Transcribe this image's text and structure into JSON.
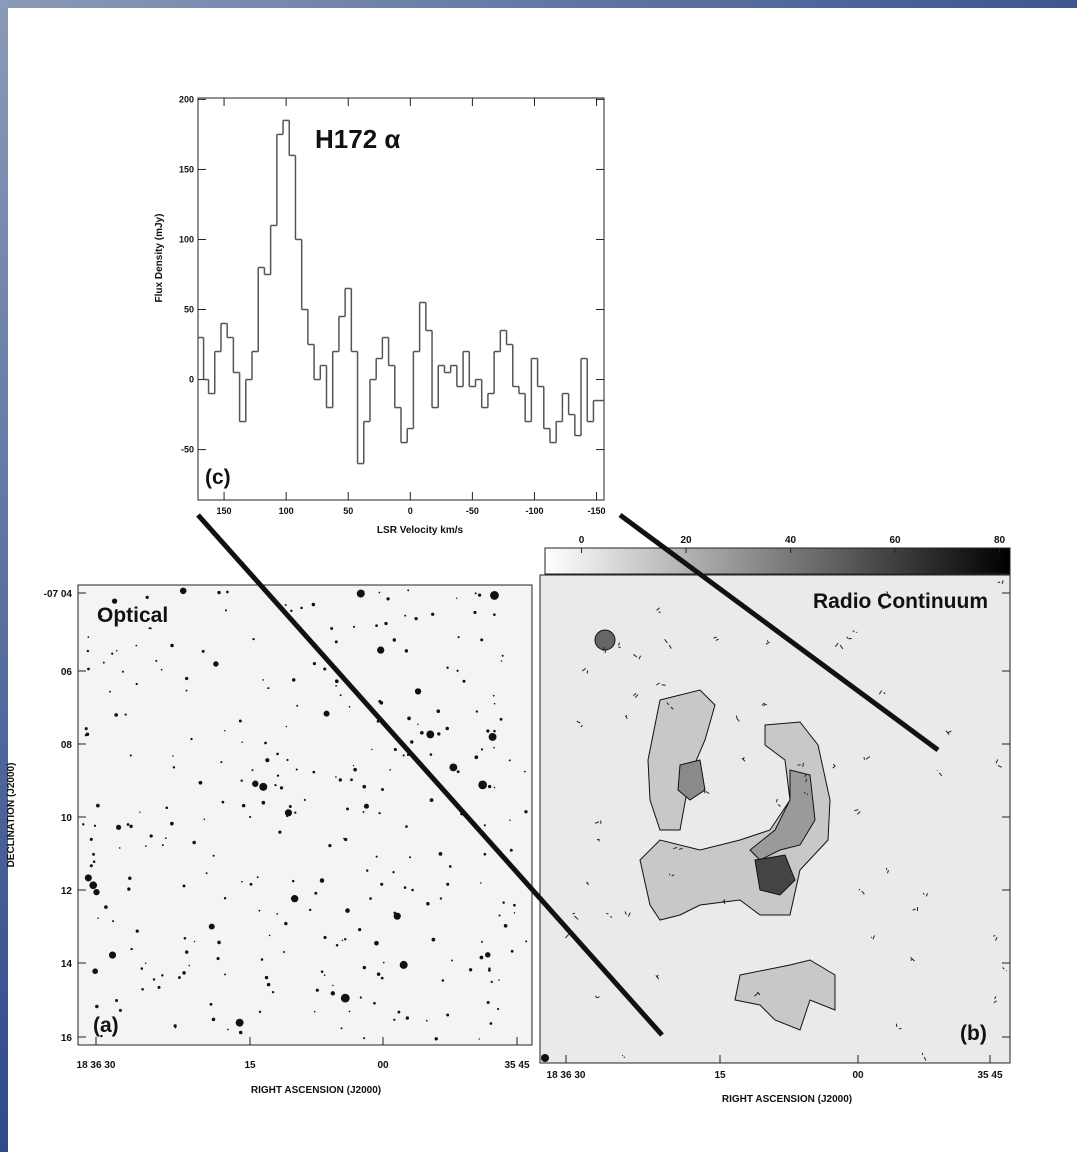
{
  "chart_data": {
    "type": "step",
    "title": "H172 α",
    "panel_label": "(c)",
    "x_label": "LSR Velocity km/s",
    "y_label": "Flux Density (mJy)",
    "x": [
      168,
      165,
      160,
      155,
      150,
      145,
      140,
      135,
      130,
      125,
      120,
      115,
      110,
      105,
      100,
      95,
      90,
      85,
      80,
      75,
      70,
      65,
      60,
      55,
      50,
      45,
      40,
      35,
      30,
      25,
      20,
      15,
      10,
      5,
      0,
      -5,
      -10,
      -15,
      -20,
      -25,
      -30,
      -35,
      -40,
      -45,
      -50,
      -55,
      -60,
      -65,
      -70,
      -75,
      -80,
      -85,
      -90,
      -95,
      -100,
      -105,
      -110,
      -115,
      -120,
      -125,
      -130,
      -135,
      -140,
      -145,
      -150
    ],
    "values": [
      30,
      0,
      -10,
      20,
      40,
      30,
      5,
      -30,
      0,
      20,
      80,
      75,
      110,
      175,
      185,
      160,
      100,
      50,
      25,
      0,
      10,
      -20,
      20,
      45,
      65,
      20,
      -60,
      -30,
      0,
      15,
      30,
      10,
      -20,
      -45,
      -35,
      20,
      55,
      35,
      -20,
      10,
      5,
      10,
      -5,
      20,
      -5,
      0,
      -20,
      -10,
      20,
      35,
      25,
      -5,
      -10,
      -30,
      15,
      -5,
      -35,
      -45,
      -30,
      -10,
      -25,
      -40,
      15,
      -30,
      -15
    ],
    "color": "#555555",
    "xlim": [
      171,
      -156
    ],
    "ylim": [
      -86,
      201
    ],
    "xticks": [
      150,
      100,
      50,
      0,
      -50,
      -100,
      -150
    ],
    "yticks": [
      -50,
      0,
      50,
      100,
      150,
      200
    ]
  },
  "panel_a": {
    "title": "Optical",
    "panel_label": "(a)",
    "x_label": "RIGHT ASCENSION (J2000)",
    "y_label": "DECLINATION (J2000)",
    "xticks": [
      "18 36 30",
      "15",
      "00",
      "35 45"
    ],
    "yticks": [
      "-07 04",
      "06",
      "08",
      "10",
      "12",
      "14",
      "16"
    ]
  },
  "panel_b": {
    "title": "Radio Continuum",
    "panel_label": "(b)",
    "x_label": "RIGHT ASCENSION (J2000)",
    "xticks": [
      "18 36 30",
      "15",
      "00",
      "35 45"
    ],
    "colorbar": {
      "lim": [
        -7,
        82
      ],
      "ticks": [
        0,
        20,
        40,
        60,
        80
      ]
    }
  }
}
